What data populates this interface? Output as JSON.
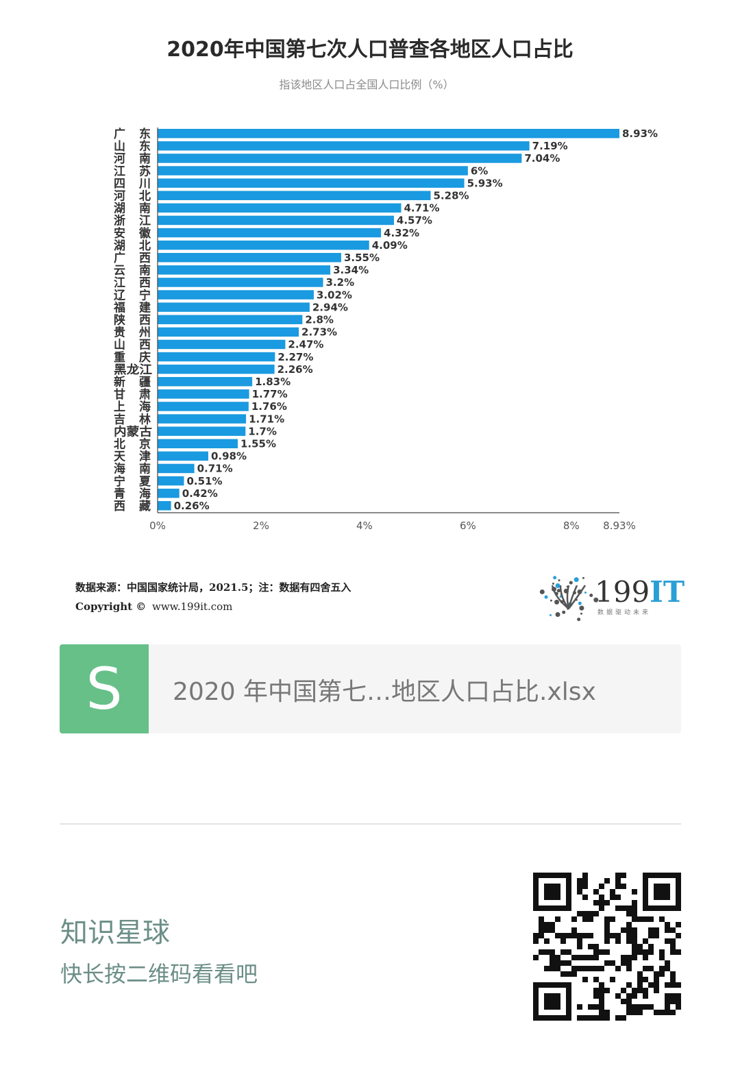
{
  "chart_data": {
    "type": "bar",
    "orientation": "horizontal",
    "title": "2020年中国第七次人口普查各地区人口占比",
    "subtitle": "指该地区人口占全国人口比例（%）",
    "categories": [
      "广东",
      "山东",
      "河南",
      "江苏",
      "四川",
      "河北",
      "湖南",
      "浙江",
      "安徽",
      "湖北",
      "广西",
      "云南",
      "江西",
      "辽宁",
      "福建",
      "陕西",
      "贵州",
      "山西",
      "重庆",
      "黑龙江",
      "新疆",
      "甘肃",
      "上海",
      "吉林",
      "内蒙古",
      "北京",
      "天津",
      "海南",
      "宁夏",
      "青海",
      "西藏"
    ],
    "values": [
      8.93,
      7.19,
      7.04,
      6,
      5.93,
      5.28,
      4.71,
      4.57,
      4.32,
      4.09,
      3.55,
      3.34,
      3.2,
      3.02,
      2.94,
      2.8,
      2.73,
      2.47,
      2.27,
      2.26,
      1.83,
      1.77,
      1.76,
      1.71,
      1.7,
      1.55,
      0.98,
      0.71,
      0.51,
      0.42,
      0.26
    ],
    "value_labels": [
      "8.93%",
      "7.19%",
      "7.04%",
      "6%",
      "5.93%",
      "5.28%",
      "4.71%",
      "4.57%",
      "4.32%",
      "4.09%",
      "3.55%",
      "3.34%",
      "3.2%",
      "3.02%",
      "2.94%",
      "2.8%",
      "2.73%",
      "2.47%",
      "2.27%",
      "2.26%",
      "1.83%",
      "1.77%",
      "1.76%",
      "1.71%",
      "1.7%",
      "1.55%",
      "0.98%",
      "0.71%",
      "0.51%",
      "0.42%",
      "0.26%"
    ],
    "xticks": [
      0,
      2,
      4,
      6,
      8,
      8.93
    ],
    "xtick_labels": [
      "0%",
      "2%",
      "4%",
      "6%",
      "8%",
      "8.93%"
    ],
    "xlim": [
      0,
      8.93
    ],
    "grid": false,
    "bar_color": "#1a9ae0"
  },
  "source": {
    "line1": "数据来源：中国国家统计局，2021.5；注：数据有四舍五入",
    "copyright_label": "Copyright ©",
    "url": "www.199it.com"
  },
  "logo": {
    "brand_num": "199",
    "brand_it": "IT",
    "slogan": "数据驱动未来"
  },
  "file_card": {
    "icon_letter": "S",
    "file_name": "2020 年中国第七…地区人口占比.xlsx"
  },
  "promo": {
    "title": "知识星球",
    "subtitle": "快长按二维码看看吧"
  },
  "colors": {
    "bar": "#1a9ae0",
    "file_icon": "#66c088",
    "promo_text": "#6b8e86"
  }
}
